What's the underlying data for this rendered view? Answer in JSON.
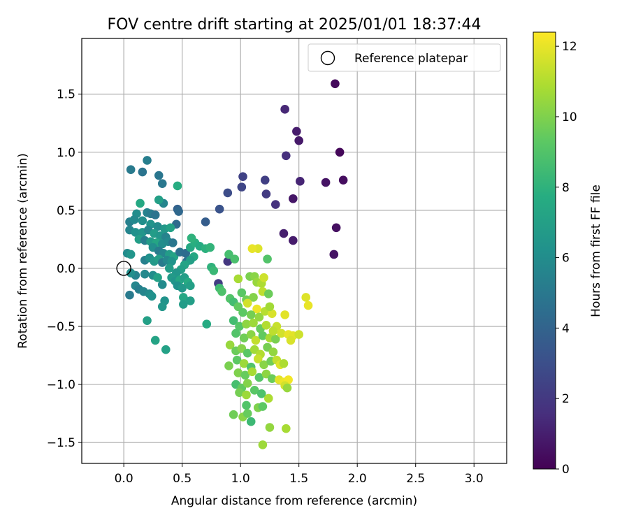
{
  "chart_data": {
    "type": "scatter",
    "title": "FOV centre drift starting at 2025/01/01 18:37:44",
    "xlabel": "Angular distance from reference (arcmin)",
    "ylabel": "Rotation from reference (arcmin)",
    "xlim": [
      -0.36,
      3.28
    ],
    "ylim": [
      -1.68,
      1.98
    ],
    "xticks": [
      0.0,
      0.5,
      1.0,
      1.5,
      2.0,
      2.5,
      3.0
    ],
    "xtick_labels": [
      "0.0",
      "0.5",
      "1.0",
      "1.5",
      "2.0",
      "2.5",
      "3.0"
    ],
    "yticks": [
      -1.5,
      -1.0,
      -0.5,
      0.0,
      0.5,
      1.0,
      1.5
    ],
    "ytick_labels": [
      "−1.5",
      "−1.0",
      "−0.5",
      "0.0",
      "0.5",
      "1.0",
      "1.5"
    ],
    "grid": true,
    "legend": {
      "position": "top-right",
      "entries": [
        "Reference platepar"
      ]
    },
    "colorbar": {
      "label": "Hours from first FF file",
      "range": [
        0,
        12.4
      ],
      "ticks": [
        0,
        2,
        4,
        6,
        8,
        10,
        12
      ],
      "tick_labels": [
        "0",
        "2",
        "4",
        "6",
        "8",
        "10",
        "12"
      ],
      "colormap": "viridis"
    },
    "reference_point": {
      "x": 0.0,
      "y": 0.0,
      "label": "Reference platepar"
    },
    "points": [
      {
        "x": 1.81,
        "y": 1.59,
        "c": 0.3
      },
      {
        "x": 1.38,
        "y": 1.37,
        "c": 1.3
      },
      {
        "x": 1.48,
        "y": 1.18,
        "c": 0.9
      },
      {
        "x": 1.5,
        "y": 1.1,
        "c": 0.8
      },
      {
        "x": 1.85,
        "y": 1.0,
        "c": 0.2
      },
      {
        "x": 1.39,
        "y": 0.97,
        "c": 1.6
      },
      {
        "x": 1.02,
        "y": 0.79,
        "c": 2.4
      },
      {
        "x": 1.21,
        "y": 0.76,
        "c": 2.3
      },
      {
        "x": 1.88,
        "y": 0.76,
        "c": 0.4
      },
      {
        "x": 1.51,
        "y": 0.75,
        "c": 1.2
      },
      {
        "x": 1.73,
        "y": 0.74,
        "c": 0.6
      },
      {
        "x": 1.01,
        "y": 0.7,
        "c": 2.6
      },
      {
        "x": 0.89,
        "y": 0.65,
        "c": 2.9
      },
      {
        "x": 1.22,
        "y": 0.64,
        "c": 2.1
      },
      {
        "x": 1.45,
        "y": 0.6,
        "c": 0.7
      },
      {
        "x": 1.3,
        "y": 0.55,
        "c": 1.7
      },
      {
        "x": 0.82,
        "y": 0.51,
        "c": 3.2
      },
      {
        "x": 1.82,
        "y": 0.35,
        "c": 0.5
      },
      {
        "x": 1.37,
        "y": 0.3,
        "c": 1.0
      },
      {
        "x": 1.45,
        "y": 0.24,
        "c": 0.9
      },
      {
        "x": 1.8,
        "y": 0.12,
        "c": 0.6
      },
      {
        "x": 0.89,
        "y": 0.06,
        "c": 1.9
      },
      {
        "x": 0.81,
        "y": -0.13,
        "c": 2.2
      },
      {
        "x": 0.7,
        "y": 0.4,
        "c": 3.7
      },
      {
        "x": 0.06,
        "y": 0.85,
        "c": 5.1
      },
      {
        "x": 0.2,
        "y": 0.93,
        "c": 5.3
      },
      {
        "x": 0.16,
        "y": 0.83,
        "c": 4.8
      },
      {
        "x": 0.3,
        "y": 0.8,
        "c": 4.9
      },
      {
        "x": 0.33,
        "y": 0.73,
        "c": 5.0
      },
      {
        "x": 0.46,
        "y": 0.51,
        "c": 3.9
      },
      {
        "x": 0.47,
        "y": 0.49,
        "c": 4.2
      },
      {
        "x": 0.45,
        "y": 0.38,
        "c": 4.3
      },
      {
        "x": 0.34,
        "y": 0.56,
        "c": 5.6
      },
      {
        "x": 0.3,
        "y": 0.59,
        "c": 7.0
      },
      {
        "x": 0.14,
        "y": 0.56,
        "c": 7.5
      },
      {
        "x": 0.46,
        "y": 0.71,
        "c": 7.7
      },
      {
        "x": 0.2,
        "y": 0.48,
        "c": 5.5
      },
      {
        "x": 0.23,
        "y": 0.47,
        "c": 5.2
      },
      {
        "x": 0.27,
        "y": 0.46,
        "c": 4.8
      },
      {
        "x": 0.11,
        "y": 0.47,
        "c": 6.0
      },
      {
        "x": 0.05,
        "y": 0.4,
        "c": 5.4
      },
      {
        "x": 0.09,
        "y": 0.42,
        "c": 5.8
      },
      {
        "x": 0.16,
        "y": 0.41,
        "c": 6.1
      },
      {
        "x": 0.23,
        "y": 0.38,
        "c": 6.3
      },
      {
        "x": 0.29,
        "y": 0.36,
        "c": 5.9
      },
      {
        "x": 0.35,
        "y": 0.34,
        "c": 6.6
      },
      {
        "x": 0.4,
        "y": 0.35,
        "c": 7.1
      },
      {
        "x": 0.05,
        "y": 0.33,
        "c": 5.6
      },
      {
        "x": 0.1,
        "y": 0.31,
        "c": 6.2
      },
      {
        "x": 0.16,
        "y": 0.31,
        "c": 6.4
      },
      {
        "x": 0.21,
        "y": 0.33,
        "c": 5.7
      },
      {
        "x": 0.26,
        "y": 0.3,
        "c": 6.8
      },
      {
        "x": 0.31,
        "y": 0.28,
        "c": 6.5
      },
      {
        "x": 0.36,
        "y": 0.27,
        "c": 5.5
      },
      {
        "x": 0.13,
        "y": 0.25,
        "c": 6.9
      },
      {
        "x": 0.18,
        "y": 0.24,
        "c": 5.3
      },
      {
        "x": 0.23,
        "y": 0.23,
        "c": 6.7
      },
      {
        "x": 0.28,
        "y": 0.22,
        "c": 7.3
      },
      {
        "x": 0.33,
        "y": 0.21,
        "c": 6.0
      },
      {
        "x": 0.38,
        "y": 0.23,
        "c": 5.8
      },
      {
        "x": 0.42,
        "y": 0.22,
        "c": 4.9
      },
      {
        "x": 0.25,
        "y": 0.18,
        "c": 6.1
      },
      {
        "x": 0.3,
        "y": 0.15,
        "c": 5.2
      },
      {
        "x": 0.34,
        "y": 0.13,
        "c": 5.6
      },
      {
        "x": 0.39,
        "y": 0.12,
        "c": 6.8
      },
      {
        "x": 0.43,
        "y": 0.1,
        "c": 7.2
      },
      {
        "x": 0.48,
        "y": 0.14,
        "c": 4.6
      },
      {
        "x": 0.53,
        "y": 0.13,
        "c": 4.4
      },
      {
        "x": 0.54,
        "y": 0.06,
        "c": 4.7
      },
      {
        "x": 0.57,
        "y": 0.18,
        "c": 7.5
      },
      {
        "x": 0.61,
        "y": 0.22,
        "c": 7.8
      },
      {
        "x": 0.65,
        "y": 0.19,
        "c": 7.6
      },
      {
        "x": 0.7,
        "y": 0.17,
        "c": 7.9
      },
      {
        "x": 0.74,
        "y": 0.18,
        "c": 8.1
      },
      {
        "x": 0.58,
        "y": 0.26,
        "c": 8.0
      },
      {
        "x": 0.6,
        "y": 0.1,
        "c": 7.4
      },
      {
        "x": 0.57,
        "y": 0.07,
        "c": 7.0
      },
      {
        "x": 0.03,
        "y": 0.13,
        "c": 5.9
      },
      {
        "x": 0.06,
        "y": 0.12,
        "c": 6.4
      },
      {
        "x": 0.18,
        "y": 0.07,
        "c": 5.4
      },
      {
        "x": 0.22,
        "y": 0.09,
        "c": 6.2
      },
      {
        "x": 0.26,
        "y": 0.06,
        "c": 6.6
      },
      {
        "x": 0.3,
        "y": 0.08,
        "c": 6.9
      },
      {
        "x": 0.33,
        "y": 0.05,
        "c": 5.1
      },
      {
        "x": 0.37,
        "y": 0.07,
        "c": 5.7
      },
      {
        "x": 0.41,
        "y": 0.06,
        "c": 6.3
      },
      {
        "x": 0.52,
        "y": 0.03,
        "c": 7.2
      },
      {
        "x": 0.49,
        "y": -0.01,
        "c": 7.0
      },
      {
        "x": 0.45,
        "y": -0.04,
        "c": 6.5
      },
      {
        "x": 0.39,
        "y": 0.0,
        "c": 6.8
      },
      {
        "x": 0.18,
        "y": -0.05,
        "c": 5.8
      },
      {
        "x": 0.1,
        "y": -0.06,
        "c": 5.5
      },
      {
        "x": 0.06,
        "y": -0.04,
        "c": 6.1
      },
      {
        "x": 0.25,
        "y": -0.06,
        "c": 6.0
      },
      {
        "x": 0.29,
        "y": -0.08,
        "c": 7.1
      },
      {
        "x": 0.41,
        "y": -0.08,
        "c": 6.7
      },
      {
        "x": 0.44,
        "y": -0.11,
        "c": 6.4
      },
      {
        "x": 0.48,
        "y": -0.1,
        "c": 7.3
      },
      {
        "x": 0.52,
        "y": -0.08,
        "c": 6.9
      },
      {
        "x": 0.55,
        "y": -0.12,
        "c": 7.6
      },
      {
        "x": 0.46,
        "y": -0.15,
        "c": 6.2
      },
      {
        "x": 0.5,
        "y": -0.17,
        "c": 6.6
      },
      {
        "x": 0.57,
        "y": -0.15,
        "c": 7.0
      },
      {
        "x": 0.33,
        "y": -0.14,
        "c": 5.9
      },
      {
        "x": 0.1,
        "y": -0.15,
        "c": 5.7
      },
      {
        "x": 0.13,
        "y": -0.18,
        "c": 5.3
      },
      {
        "x": 0.17,
        "y": -0.2,
        "c": 5.6
      },
      {
        "x": 0.22,
        "y": -0.22,
        "c": 5.9
      },
      {
        "x": 0.05,
        "y": -0.23,
        "c": 5.1
      },
      {
        "x": 0.24,
        "y": -0.24,
        "c": 6.2
      },
      {
        "x": 0.35,
        "y": -0.28,
        "c": 6.3
      },
      {
        "x": 0.33,
        "y": -0.33,
        "c": 6.5
      },
      {
        "x": 0.51,
        "y": -0.25,
        "c": 7.4
      },
      {
        "x": 0.51,
        "y": -0.31,
        "c": 6.8
      },
      {
        "x": 0.57,
        "y": -0.28,
        "c": 6.9
      },
      {
        "x": 0.2,
        "y": -0.45,
        "c": 7.0
      },
      {
        "x": 0.27,
        "y": -0.62,
        "c": 7.2
      },
      {
        "x": 0.36,
        "y": -0.7,
        "c": 7.1
      },
      {
        "x": 0.71,
        "y": -0.48,
        "c": 7.6
      },
      {
        "x": 0.75,
        "y": 0.01,
        "c": 8.0
      },
      {
        "x": 0.77,
        "y": -0.02,
        "c": 8.3
      },
      {
        "x": 0.82,
        "y": -0.17,
        "c": 8.5
      },
      {
        "x": 0.84,
        "y": -0.2,
        "c": 8.9
      },
      {
        "x": 0.9,
        "y": 0.12,
        "c": 8.7
      },
      {
        "x": 0.95,
        "y": 0.08,
        "c": 8.8
      },
      {
        "x": 0.91,
        "y": -0.26,
        "c": 9.0
      },
      {
        "x": 0.94,
        "y": -0.29,
        "c": 8.6
      },
      {
        "x": 0.98,
        "y": -0.33,
        "c": 9.4
      },
      {
        "x": 1.01,
        "y": -0.21,
        "c": 9.2
      },
      {
        "x": 1.05,
        "y": -0.27,
        "c": 9.7
      },
      {
        "x": 1.08,
        "y": -0.07,
        "c": 9.9
      },
      {
        "x": 1.12,
        "y": -0.07,
        "c": 10.2
      },
      {
        "x": 1.14,
        "y": -0.12,
        "c": 10.5
      },
      {
        "x": 1.18,
        "y": -0.13,
        "c": 10.9
      },
      {
        "x": 1.2,
        "y": -0.08,
        "c": 11.5
      },
      {
        "x": 1.23,
        "y": 0.08,
        "c": 9.0
      },
      {
        "x": 1.15,
        "y": 0.17,
        "c": 11.8
      },
      {
        "x": 1.1,
        "y": 0.17,
        "c": 12.0
      },
      {
        "x": 0.98,
        "y": -0.09,
        "c": 10.8
      },
      {
        "x": 1.19,
        "y": -0.2,
        "c": 11.2
      },
      {
        "x": 1.24,
        "y": -0.22,
        "c": 9.6
      },
      {
        "x": 1.11,
        "y": -0.25,
        "c": 10.1
      },
      {
        "x": 1.06,
        "y": -0.3,
        "c": 11.6
      },
      {
        "x": 1.14,
        "y": -0.35,
        "c": 12.1
      },
      {
        "x": 1.02,
        "y": -0.38,
        "c": 9.3
      },
      {
        "x": 1.09,
        "y": -0.4,
        "c": 9.8
      },
      {
        "x": 1.16,
        "y": -0.42,
        "c": 10.4
      },
      {
        "x": 1.21,
        "y": -0.37,
        "c": 11.1
      },
      {
        "x": 1.27,
        "y": -0.39,
        "c": 11.7
      },
      {
        "x": 1.25,
        "y": -0.33,
        "c": 10.7
      },
      {
        "x": 1.38,
        "y": -0.4,
        "c": 11.9
      },
      {
        "x": 1.56,
        "y": -0.25,
        "c": 11.8
      },
      {
        "x": 1.58,
        "y": -0.32,
        "c": 12.0
      },
      {
        "x": 0.94,
        "y": -0.45,
        "c": 8.6
      },
      {
        "x": 0.99,
        "y": -0.5,
        "c": 9.1
      },
      {
        "x": 1.05,
        "y": -0.48,
        "c": 10.3
      },
      {
        "x": 1.11,
        "y": -0.47,
        "c": 10.6
      },
      {
        "x": 1.17,
        "y": -0.52,
        "c": 9.5
      },
      {
        "x": 1.22,
        "y": -0.49,
        "c": 11.0
      },
      {
        "x": 1.31,
        "y": -0.5,
        "c": 11.4
      },
      {
        "x": 0.96,
        "y": -0.56,
        "c": 9.0
      },
      {
        "x": 1.03,
        "y": -0.6,
        "c": 9.7
      },
      {
        "x": 1.09,
        "y": -0.57,
        "c": 10.2
      },
      {
        "x": 1.13,
        "y": -0.62,
        "c": 11.3
      },
      {
        "x": 1.19,
        "y": -0.58,
        "c": 9.4
      },
      {
        "x": 1.25,
        "y": -0.6,
        "c": 10.8
      },
      {
        "x": 1.3,
        "y": -0.61,
        "c": 9.9
      },
      {
        "x": 1.35,
        "y": -0.56,
        "c": 11.6
      },
      {
        "x": 1.41,
        "y": -0.57,
        "c": 12.0
      },
      {
        "x": 1.45,
        "y": -0.58,
        "c": 11.9
      },
      {
        "x": 1.43,
        "y": -0.62,
        "c": 11.7
      },
      {
        "x": 1.5,
        "y": -0.57,
        "c": 11.5
      },
      {
        "x": 1.28,
        "y": -0.54,
        "c": 11.2
      },
      {
        "x": 0.91,
        "y": -0.66,
        "c": 10.5
      },
      {
        "x": 0.96,
        "y": -0.71,
        "c": 9.6
      },
      {
        "x": 1.01,
        "y": -0.69,
        "c": 10.1
      },
      {
        "x": 1.06,
        "y": -0.73,
        "c": 9.2
      },
      {
        "x": 1.12,
        "y": -0.7,
        "c": 10.7
      },
      {
        "x": 1.17,
        "y": -0.74,
        "c": 11.0
      },
      {
        "x": 1.23,
        "y": -0.68,
        "c": 9.8
      },
      {
        "x": 1.28,
        "y": -0.72,
        "c": 10.4
      },
      {
        "x": 0.9,
        "y": -0.84,
        "c": 9.9
      },
      {
        "x": 0.97,
        "y": -0.79,
        "c": 9.3
      },
      {
        "x": 1.03,
        "y": -0.82,
        "c": 10.6
      },
      {
        "x": 1.09,
        "y": -0.85,
        "c": 9.0
      },
      {
        "x": 1.15,
        "y": -0.78,
        "c": 11.4
      },
      {
        "x": 1.2,
        "y": -0.83,
        "c": 10.2
      },
      {
        "x": 1.26,
        "y": -0.8,
        "c": 9.7
      },
      {
        "x": 1.31,
        "y": -0.79,
        "c": 11.3
      },
      {
        "x": 1.34,
        "y": -0.83,
        "c": 11.8
      },
      {
        "x": 1.37,
        "y": -0.82,
        "c": 10.9
      },
      {
        "x": 0.98,
        "y": -0.9,
        "c": 10.0
      },
      {
        "x": 1.04,
        "y": -0.92,
        "c": 9.5
      },
      {
        "x": 1.1,
        "y": -0.89,
        "c": 10.8
      },
      {
        "x": 1.16,
        "y": -0.94,
        "c": 9.1
      },
      {
        "x": 1.22,
        "y": -0.91,
        "c": 10.3
      },
      {
        "x": 1.27,
        "y": -0.95,
        "c": 9.6
      },
      {
        "x": 1.33,
        "y": -0.96,
        "c": 11.9
      },
      {
        "x": 1.37,
        "y": -0.98,
        "c": 12.1
      },
      {
        "x": 1.41,
        "y": -0.96,
        "c": 12.2
      },
      {
        "x": 1.38,
        "y": -1.01,
        "c": 11.6
      },
      {
        "x": 1.4,
        "y": -1.03,
        "c": 10.5
      },
      {
        "x": 0.96,
        "y": -1.0,
        "c": 8.7
      },
      {
        "x": 1.01,
        "y": -1.03,
        "c": 9.4
      },
      {
        "x": 1.06,
        "y": -0.99,
        "c": 10.1
      },
      {
        "x": 0.99,
        "y": -1.07,
        "c": 9.8
      },
      {
        "x": 1.05,
        "y": -1.09,
        "c": 10.6
      },
      {
        "x": 1.12,
        "y": -1.05,
        "c": 9.2
      },
      {
        "x": 1.18,
        "y": -1.08,
        "c": 8.9
      },
      {
        "x": 1.24,
        "y": -1.12,
        "c": 10.9
      },
      {
        "x": 0.94,
        "y": -1.26,
        "c": 9.7
      },
      {
        "x": 1.02,
        "y": -1.28,
        "c": 10.2
      },
      {
        "x": 1.06,
        "y": -1.25,
        "c": 9.5
      },
      {
        "x": 1.09,
        "y": -1.32,
        "c": 8.4
      },
      {
        "x": 1.15,
        "y": -1.2,
        "c": 10.0
      },
      {
        "x": 1.19,
        "y": -1.19,
        "c": 9.3
      },
      {
        "x": 1.05,
        "y": -1.18,
        "c": 9.0
      },
      {
        "x": 1.25,
        "y": -1.37,
        "c": 10.4
      },
      {
        "x": 1.39,
        "y": -1.38,
        "c": 10.8
      },
      {
        "x": 1.19,
        "y": -1.52,
        "c": 10.6
      }
    ]
  }
}
